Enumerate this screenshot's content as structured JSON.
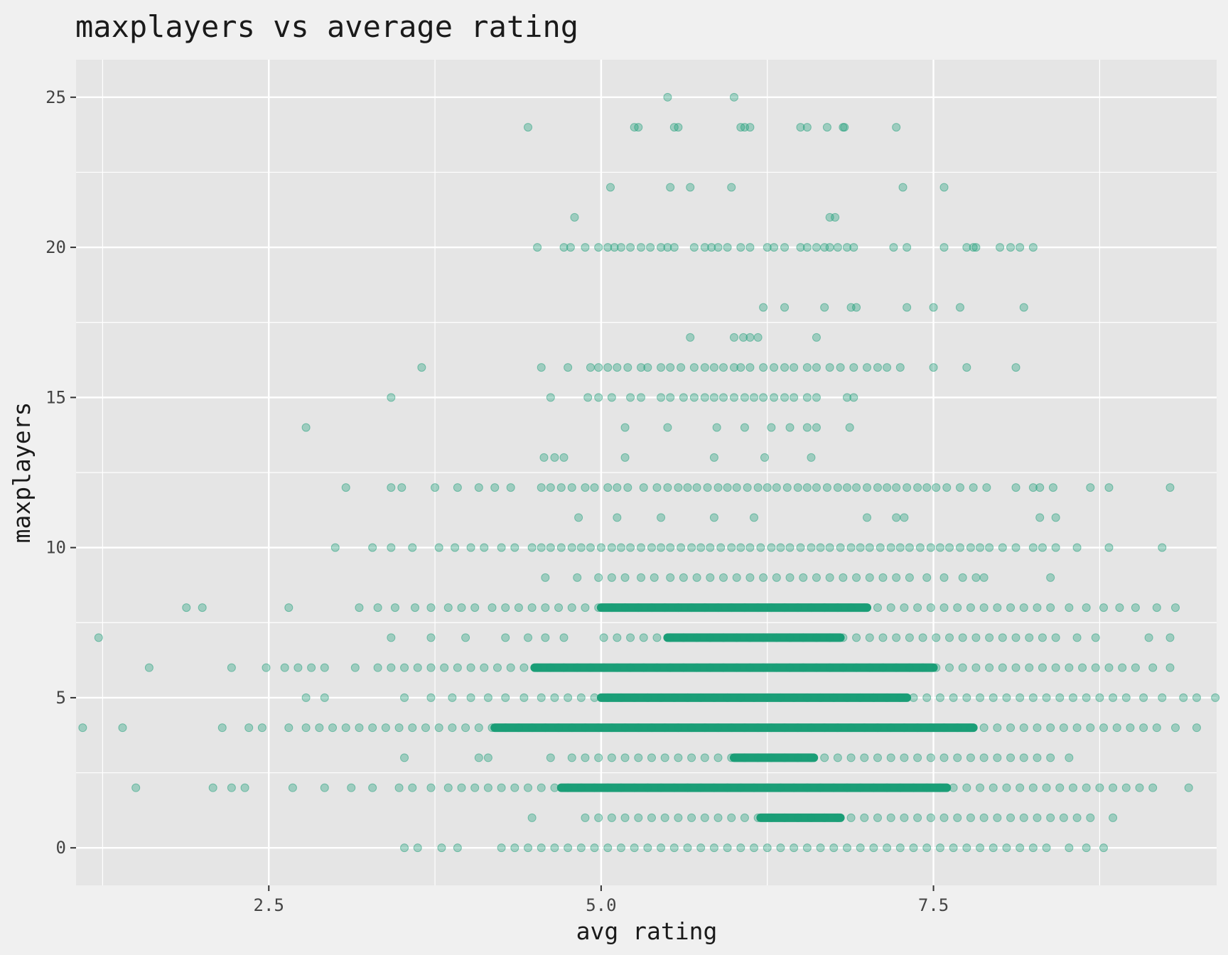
{
  "chart_data": {
    "type": "scatter",
    "title": "maxplayers vs average rating",
    "xlabel": "avg rating",
    "ylabel": "maxplayers",
    "xlim": [
      1.05,
      9.63
    ],
    "ylim": [
      -1.25,
      26.25
    ],
    "x_ticks": [
      2.5,
      5.0,
      7.5
    ],
    "x_tick_labels": [
      "2.5",
      "5.0",
      "7.5"
    ],
    "y_ticks": [
      0,
      5,
      10,
      15,
      20,
      25
    ],
    "y_tick_labels": [
      "0",
      "5",
      "10",
      "15",
      "20",
      "25"
    ],
    "grid": true,
    "point_color": "#1b9e77",
    "point_opacity": 0.35,
    "rows": [
      {
        "y": 25,
        "points": [
          5.5,
          6.0
        ]
      },
      {
        "y": 24,
        "points": [
          4.45,
          5.25,
          5.28,
          5.55,
          5.58,
          6.05,
          6.08,
          6.12,
          6.5,
          6.55,
          6.7,
          6.82,
          6.83,
          7.22
        ]
      },
      {
        "y": 22,
        "points": [
          5.07,
          5.52,
          5.67,
          5.98,
          7.27,
          7.58
        ]
      },
      {
        "y": 21,
        "points": [
          4.8,
          6.72,
          6.76
        ]
      },
      {
        "y": 20,
        "points": [
          4.52,
          4.72,
          4.77,
          4.88,
          4.98,
          5.05,
          5.1,
          5.15,
          5.22,
          5.3,
          5.37,
          5.45,
          5.5,
          5.55,
          5.7,
          5.78,
          5.83,
          5.88,
          5.95,
          6.05,
          6.12,
          6.25,
          6.3,
          6.38,
          6.5,
          6.55,
          6.62,
          6.68,
          6.72,
          6.78,
          6.85,
          6.9,
          7.2,
          7.3,
          7.58,
          7.75,
          7.8,
          7.82,
          8.0,
          8.08,
          8.15,
          8.25
        ]
      },
      {
        "y": 18,
        "points": [
          6.22,
          6.38,
          6.68,
          6.88,
          6.92,
          7.3,
          7.5,
          7.7,
          8.18
        ]
      },
      {
        "y": 17,
        "points": [
          5.67,
          6.0,
          6.07,
          6.12,
          6.18,
          6.62
        ]
      },
      {
        "y": 16,
        "points": [
          3.65,
          4.55,
          4.75,
          4.92,
          4.98,
          5.05,
          5.12,
          5.2,
          5.3,
          5.35,
          5.45,
          5.52,
          5.6,
          5.7,
          5.78,
          5.85,
          5.92,
          6.0,
          6.05,
          6.12,
          6.22,
          6.3,
          6.38,
          6.45,
          6.55,
          6.62,
          6.72,
          6.8,
          6.9,
          7.0,
          7.08,
          7.15,
          7.25,
          7.5,
          7.75,
          8.12
        ]
      },
      {
        "y": 15,
        "points": [
          3.42,
          4.62,
          4.9,
          4.98,
          5.08,
          5.22,
          5.3,
          5.45,
          5.52,
          5.62,
          5.7,
          5.78,
          5.85,
          5.92,
          6.0,
          6.08,
          6.15,
          6.22,
          6.3,
          6.38,
          6.45,
          6.55,
          6.62,
          6.85,
          6.9
        ]
      },
      {
        "y": 14,
        "points": [
          2.78,
          5.18,
          5.5,
          5.87,
          6.08,
          6.28,
          6.42,
          6.55,
          6.62,
          6.87
        ]
      },
      {
        "y": 13,
        "points": [
          4.57,
          4.65,
          4.72,
          5.18,
          5.85,
          6.23,
          6.58
        ]
      },
      {
        "y": 12,
        "points": [
          3.08,
          3.42,
          3.5,
          3.75,
          3.92,
          4.08,
          4.2,
          4.32,
          4.55,
          4.62,
          4.7,
          4.78,
          4.88,
          4.95,
          5.05,
          5.12,
          5.2,
          5.32,
          5.42,
          5.5,
          5.58,
          5.65,
          5.72,
          5.8,
          5.88,
          5.95,
          6.02,
          6.1,
          6.18,
          6.25,
          6.32,
          6.4,
          6.48,
          6.55,
          6.62,
          6.7,
          6.78,
          6.85,
          6.92,
          7.0,
          7.08,
          7.15,
          7.22,
          7.3,
          7.38,
          7.45,
          7.52,
          7.6,
          7.7,
          7.8,
          7.9,
          8.12,
          8.25,
          8.3,
          8.4,
          8.68,
          8.82,
          9.28
        ]
      },
      {
        "y": 11,
        "points": [
          4.83,
          5.12,
          5.45,
          5.85,
          6.15,
          7.0,
          7.22,
          7.28,
          8.3,
          8.42
        ]
      },
      {
        "y": 10,
        "points": [
          3.0,
          3.28,
          3.42,
          3.58,
          3.78,
          3.9,
          4.02,
          4.12,
          4.25,
          4.35,
          4.48,
          4.55,
          4.62,
          4.7,
          4.78,
          4.85,
          4.92,
          5.0,
          5.08,
          5.15,
          5.22,
          5.3,
          5.38,
          5.45,
          5.52,
          5.6,
          5.68,
          5.75,
          5.82,
          5.9,
          5.98,
          6.05,
          6.12,
          6.2,
          6.28,
          6.35,
          6.42,
          6.5,
          6.58,
          6.65,
          6.72,
          6.8,
          6.88,
          6.95,
          7.02,
          7.1,
          7.18,
          7.25,
          7.32,
          7.4,
          7.48,
          7.55,
          7.62,
          7.7,
          7.78,
          7.85,
          7.92,
          8.02,
          8.12,
          8.25,
          8.32,
          8.42,
          8.58,
          8.82,
          9.22
        ]
      },
      {
        "y": 9,
        "points": [
          4.58,
          4.82,
          4.98,
          5.08,
          5.18,
          5.3,
          5.4,
          5.52,
          5.62,
          5.72,
          5.82,
          5.92,
          6.02,
          6.12,
          6.22,
          6.32,
          6.42,
          6.52,
          6.62,
          6.72,
          6.82,
          6.92,
          7.02,
          7.12,
          7.22,
          7.32,
          7.45,
          7.58,
          7.72,
          7.82,
          7.88,
          8.38
        ]
      },
      {
        "y": 8,
        "points": [
          1.88,
          2.0,
          2.65,
          3.18,
          3.32,
          3.45,
          3.6,
          3.72,
          3.85,
          3.95,
          4.05,
          4.18,
          4.28,
          4.38,
          4.48,
          4.58,
          4.68,
          4.78,
          4.88,
          4.98,
          5.08,
          5.18,
          5.28,
          5.38,
          5.48,
          5.58,
          5.68,
          5.78,
          5.88,
          5.98,
          6.08,
          6.18,
          6.28,
          6.38,
          6.48,
          6.58,
          6.68,
          6.78,
          6.88,
          6.98,
          7.08,
          7.18,
          7.28,
          7.38,
          7.48,
          7.58,
          7.68,
          7.78,
          7.88,
          7.98,
          8.08,
          8.18,
          8.28,
          8.38,
          8.52,
          8.65,
          8.78,
          8.9,
          9.02,
          9.18,
          9.32
        ]
      },
      {
        "y": 7,
        "points": [
          1.22,
          3.42,
          3.72,
          3.98,
          4.28,
          4.45,
          4.58,
          4.72,
          5.02,
          5.12,
          5.22,
          5.32,
          5.42,
          5.52,
          5.62,
          5.72,
          5.82,
          5.92,
          6.02,
          6.12,
          6.22,
          6.32,
          6.42,
          6.52,
          6.62,
          6.72,
          6.82,
          6.92,
          7.02,
          7.12,
          7.22,
          7.32,
          7.42,
          7.52,
          7.62,
          7.72,
          7.82,
          7.92,
          8.02,
          8.12,
          8.22,
          8.32,
          8.42,
          8.58,
          8.72,
          9.12,
          9.28
        ]
      },
      {
        "y": 6,
        "points": [
          1.6,
          2.22,
          2.48,
          2.62,
          2.72,
          2.82,
          2.92,
          3.15,
          3.32,
          3.42,
          3.52,
          3.62,
          3.72,
          3.82,
          3.92,
          4.02,
          4.12,
          4.22,
          4.32,
          4.42,
          4.52,
          4.62,
          4.72,
          4.82,
          4.92,
          5.02,
          5.12,
          5.22,
          5.32,
          5.42,
          5.52,
          5.62,
          5.72,
          5.82,
          5.92,
          6.02,
          6.12,
          6.22,
          6.32,
          6.42,
          6.52,
          6.62,
          6.72,
          6.82,
          6.92,
          7.02,
          7.12,
          7.22,
          7.32,
          7.42,
          7.52,
          7.62,
          7.72,
          7.82,
          7.92,
          8.02,
          8.12,
          8.22,
          8.32,
          8.42,
          8.52,
          8.62,
          8.72,
          8.82,
          8.92,
          9.02,
          9.15,
          9.28
        ]
      },
      {
        "y": 5,
        "points": [
          2.78,
          2.92,
          3.52,
          3.72,
          3.88,
          4.02,
          4.15,
          4.28,
          4.42,
          4.55,
          4.65,
          4.75,
          4.85,
          4.95,
          5.05,
          5.15,
          5.25,
          5.35,
          5.45,
          5.55,
          5.65,
          5.75,
          5.85,
          5.95,
          6.05,
          6.15,
          6.25,
          6.35,
          6.45,
          6.55,
          6.65,
          6.75,
          6.85,
          6.95,
          7.05,
          7.15,
          7.25,
          7.35,
          7.45,
          7.55,
          7.65,
          7.75,
          7.85,
          7.95,
          8.05,
          8.15,
          8.25,
          8.35,
          8.45,
          8.55,
          8.65,
          8.75,
          8.85,
          8.95,
          9.08,
          9.22,
          9.38,
          9.48,
          9.62
        ]
      },
      {
        "y": 4,
        "points": [
          1.1,
          1.4,
          2.15,
          2.35,
          2.45,
          2.65,
          2.78,
          2.88,
          2.98,
          3.08,
          3.18,
          3.28,
          3.38,
          3.48,
          3.58,
          3.68,
          3.78,
          3.88,
          3.98,
          4.08,
          4.18,
          4.28,
          4.38,
          4.48,
          4.58,
          4.68,
          4.78,
          4.88,
          4.98,
          5.08,
          5.18,
          5.28,
          5.38,
          5.48,
          5.58,
          5.68,
          5.78,
          5.88,
          5.98,
          6.08,
          6.18,
          6.28,
          6.38,
          6.48,
          6.58,
          6.68,
          6.78,
          6.88,
          6.98,
          7.08,
          7.18,
          7.28,
          7.38,
          7.48,
          7.58,
          7.68,
          7.78,
          7.88,
          7.98,
          8.08,
          8.18,
          8.28,
          8.38,
          8.48,
          8.58,
          8.68,
          8.78,
          8.88,
          8.98,
          9.08,
          9.18,
          9.32,
          9.48
        ]
      },
      {
        "y": 3,
        "points": [
          3.52,
          4.08,
          4.15,
          4.62,
          4.78,
          4.88,
          4.98,
          5.08,
          5.18,
          5.28,
          5.38,
          5.48,
          5.58,
          5.68,
          5.78,
          5.88,
          5.98,
          6.08,
          6.18,
          6.28,
          6.38,
          6.48,
          6.58,
          6.68,
          6.78,
          6.88,
          6.98,
          7.08,
          7.18,
          7.28,
          7.38,
          7.48,
          7.58,
          7.68,
          7.78,
          7.88,
          7.98,
          8.08,
          8.18,
          8.28,
          8.38,
          8.52
        ]
      },
      {
        "y": 2,
        "points": [
          1.5,
          2.08,
          2.22,
          2.32,
          2.68,
          2.92,
          3.12,
          3.28,
          3.48,
          3.58,
          3.72,
          3.85,
          3.95,
          4.05,
          4.15,
          4.25,
          4.35,
          4.45,
          4.55,
          4.65,
          4.75,
          4.85,
          4.95,
          5.05,
          5.15,
          5.25,
          5.35,
          5.45,
          5.55,
          5.65,
          5.75,
          5.85,
          5.95,
          6.05,
          6.15,
          6.25,
          6.35,
          6.45,
          6.55,
          6.65,
          6.75,
          6.85,
          6.95,
          7.05,
          7.15,
          7.25,
          7.35,
          7.45,
          7.55,
          7.65,
          7.75,
          7.85,
          7.95,
          8.05,
          8.15,
          8.25,
          8.35,
          8.45,
          8.55,
          8.65,
          8.75,
          8.85,
          8.95,
          9.05,
          9.15,
          9.42
        ]
      },
      {
        "y": 1,
        "points": [
          4.48,
          4.88,
          4.98,
          5.08,
          5.18,
          5.28,
          5.38,
          5.48,
          5.58,
          5.68,
          5.78,
          5.88,
          5.98,
          6.08,
          6.18,
          6.28,
          6.38,
          6.48,
          6.58,
          6.68,
          6.78,
          6.88,
          6.98,
          7.08,
          7.18,
          7.28,
          7.38,
          7.48,
          7.58,
          7.68,
          7.78,
          7.88,
          7.98,
          8.08,
          8.18,
          8.28,
          8.38,
          8.48,
          8.58,
          8.68,
          8.85
        ]
      },
      {
        "y": 0,
        "points": [
          3.52,
          3.62,
          3.8,
          3.92,
          4.25,
          4.35,
          4.45,
          4.55,
          4.65,
          4.75,
          4.85,
          4.95,
          5.05,
          5.15,
          5.25,
          5.35,
          5.45,
          5.55,
          5.65,
          5.75,
          5.85,
          5.95,
          6.05,
          6.15,
          6.25,
          6.35,
          6.45,
          6.55,
          6.65,
          6.75,
          6.85,
          6.95,
          7.05,
          7.15,
          7.25,
          7.35,
          7.45,
          7.55,
          7.65,
          7.75,
          7.85,
          7.95,
          8.05,
          8.15,
          8.25,
          8.35,
          8.52,
          8.65,
          8.78
        ]
      }
    ],
    "dense_bands": [
      {
        "y": 8,
        "from": 5.0,
        "to": 7.0
      },
      {
        "y": 7,
        "from": 5.5,
        "to": 6.8
      },
      {
        "y": 6,
        "from": 4.5,
        "to": 7.5
      },
      {
        "y": 5,
        "from": 5.0,
        "to": 7.3
      },
      {
        "y": 4,
        "from": 4.2,
        "to": 7.8
      },
      {
        "y": 3,
        "from": 6.0,
        "to": 6.6
      },
      {
        "y": 2,
        "from": 4.7,
        "to": 7.6
      },
      {
        "y": 1,
        "from": 6.2,
        "to": 6.8
      }
    ]
  }
}
